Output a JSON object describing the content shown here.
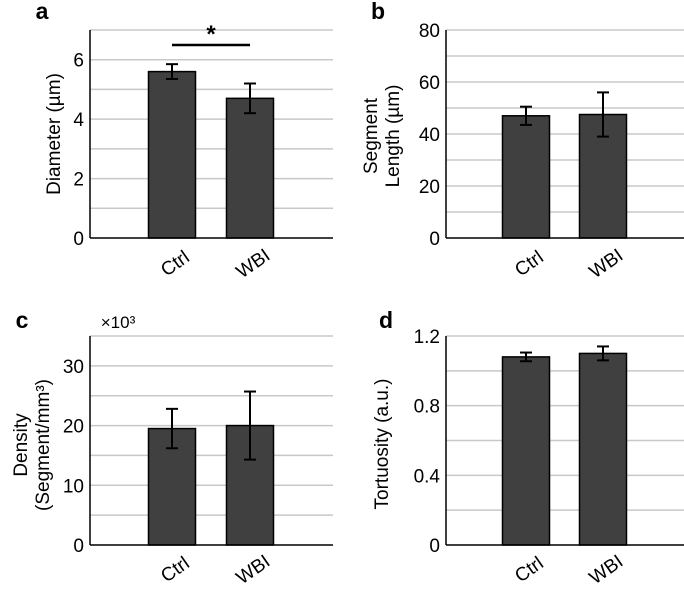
{
  "chart_data": [
    {
      "panel": "a",
      "type": "bar",
      "ylabel": [
        "Diameter (µm)"
      ],
      "categories": [
        "Ctrl",
        "WBI"
      ],
      "values": [
        5.6,
        4.7
      ],
      "errors": [
        0.25,
        0.5
      ],
      "ylim": [
        0,
        7
      ],
      "yticks": [
        0,
        2,
        4,
        6
      ],
      "yticklabels": [
        "0",
        "2",
        "4",
        "6"
      ],
      "grid_step": 1,
      "significance": "*"
    },
    {
      "panel": "b",
      "type": "bar",
      "ylabel": [
        "Segment",
        "Length (µm)"
      ],
      "categories": [
        "Ctrl",
        "WBI"
      ],
      "values": [
        47,
        47.5
      ],
      "errors": [
        3.5,
        8.5
      ],
      "ylim": [
        0,
        80
      ],
      "yticks": [
        0,
        20,
        40,
        60,
        80
      ],
      "yticklabels": [
        "0",
        "20",
        "40",
        "60",
        "80"
      ],
      "grid_step": 10
    },
    {
      "panel": "c",
      "type": "bar",
      "ylabel": [
        "Density",
        "(Segment/mm³)"
      ],
      "categories": [
        "Ctrl",
        "WBI"
      ],
      "values": [
        19.5,
        20
      ],
      "errors": [
        3.3,
        5.7
      ],
      "ylim": [
        0,
        35
      ],
      "yticks": [
        0,
        10,
        20,
        30
      ],
      "yticklabels": [
        "0",
        "10",
        "20",
        "30"
      ],
      "grid_step": 5,
      "multiplier": "×10³"
    },
    {
      "panel": "d",
      "type": "bar",
      "ylabel": [
        "Tortuosity (a.u.)"
      ],
      "categories": [
        "Ctrl",
        "WBI"
      ],
      "values": [
        1.08,
        1.1
      ],
      "errors": [
        0.025,
        0.04
      ],
      "ylim": [
        0,
        1.2
      ],
      "yticks": [
        0,
        0.4,
        0.8,
        1.2
      ],
      "yticklabels": [
        "0",
        "0.4",
        "0.8",
        "1.2"
      ],
      "grid_step": 0.2
    }
  ],
  "colors": {
    "bar_fill": "#404040",
    "bar_stroke": "#000000",
    "grid": "#c8c8c8",
    "axis": "#000000",
    "text": "#000000"
  }
}
